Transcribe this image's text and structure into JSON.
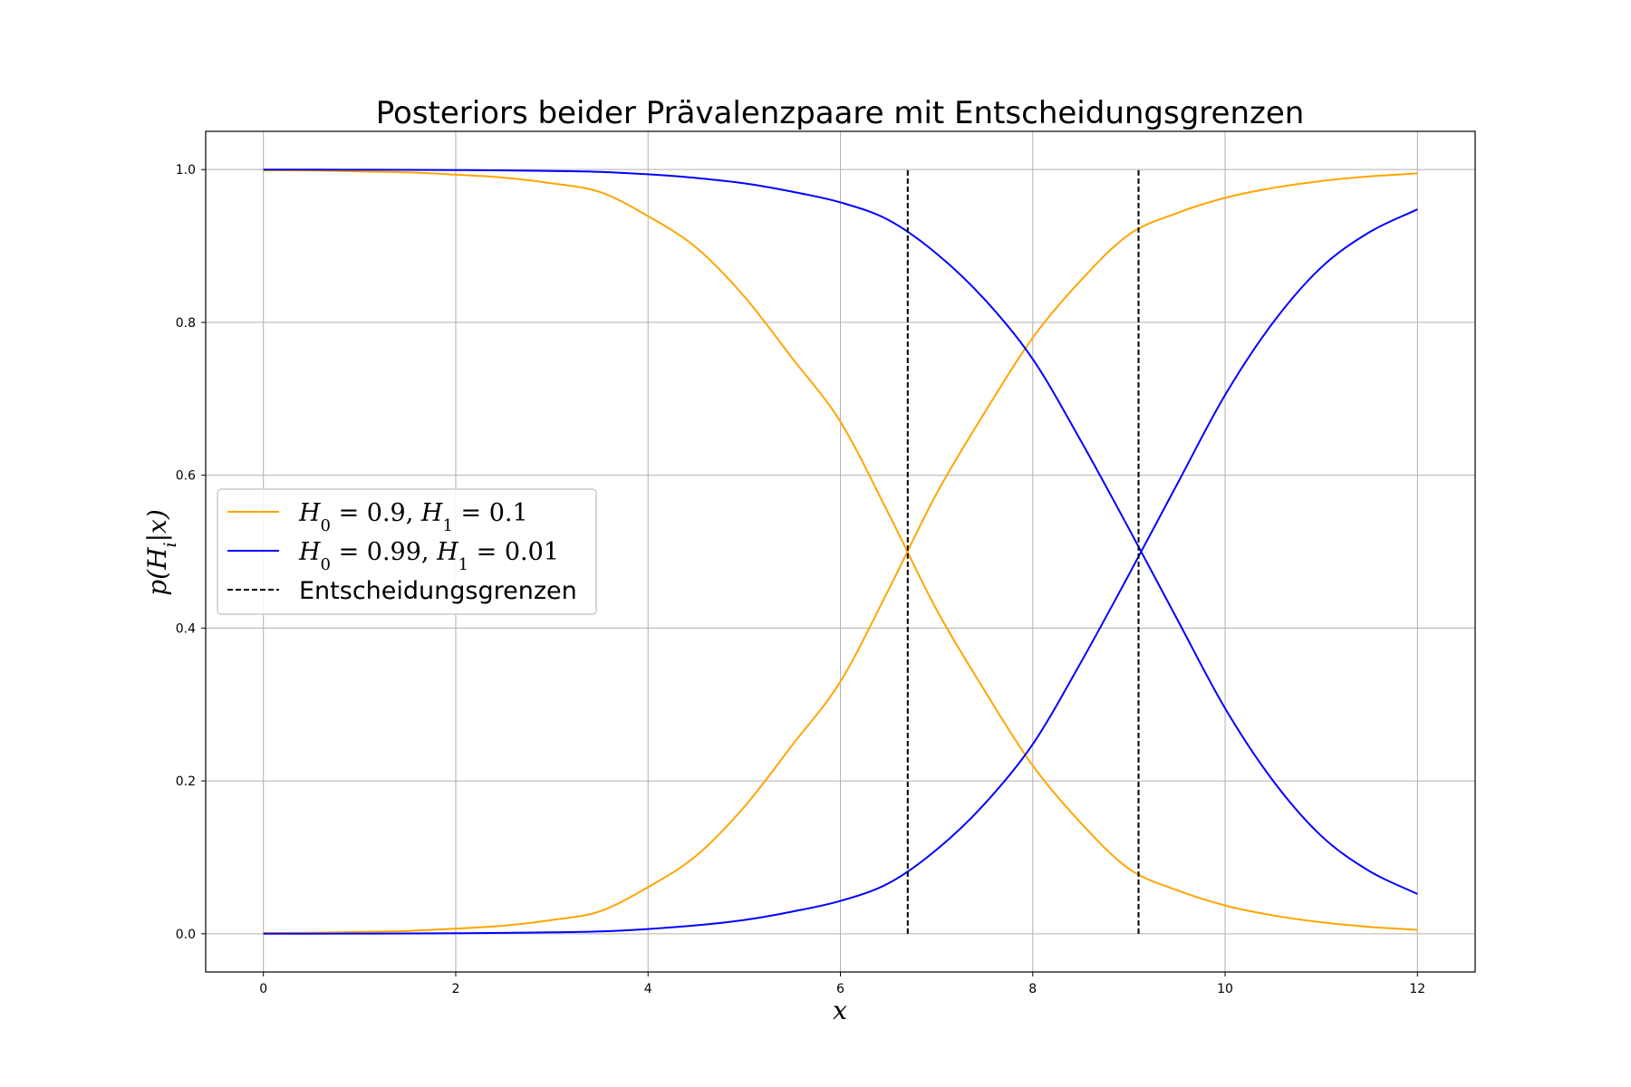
{
  "chart_data": {
    "type": "line",
    "title": "Posteriors beider Prävalenzpaare mit Entscheidungsgrenzen",
    "xlabel": "x",
    "ylabel": "p(H_i|x)",
    "xlim": [
      -0.6,
      12.6
    ],
    "ylim": [
      -0.05,
      1.05
    ],
    "xticks": [
      0,
      2,
      4,
      6,
      8,
      10,
      12
    ],
    "xtick_labels": [
      "0",
      "2",
      "4",
      "6",
      "8",
      "10",
      "12"
    ],
    "yticks": [
      0.0,
      0.2,
      0.4,
      0.6,
      0.8,
      1.0
    ],
    "ytick_labels": [
      "0.0",
      "0.2",
      "0.4",
      "0.6",
      "0.8",
      "1.0"
    ],
    "grid": true,
    "legend_position": "center-left",
    "series": [
      {
        "name": "H_0 = 0.9, H_1 = 0.1",
        "color": "#ffa500",
        "x": [
          0,
          0.5,
          1,
          1.5,
          2,
          2.5,
          3,
          3.5,
          4,
          4.5,
          5,
          5.5,
          6,
          6.5,
          7,
          7.5,
          8,
          8.5,
          9,
          9.5,
          10,
          10.5,
          11,
          11.5,
          12
        ],
        "posterior_H0": [
          0.9991,
          0.9987,
          0.9976,
          0.9963,
          0.9933,
          0.9894,
          0.982,
          0.9706,
          0.939,
          0.898,
          0.834,
          0.753,
          0.67,
          0.55,
          0.424,
          0.318,
          0.22,
          0.145,
          0.085,
          0.057,
          0.037,
          0.024,
          0.015,
          0.009,
          0.005
        ],
        "posterior_H1": [
          0.0009,
          0.0013,
          0.0024,
          0.0037,
          0.0067,
          0.0106,
          0.018,
          0.0294,
          0.061,
          0.102,
          0.166,
          0.247,
          0.33,
          0.45,
          0.576,
          0.682,
          0.78,
          0.855,
          0.915,
          0.943,
          0.963,
          0.976,
          0.985,
          0.991,
          0.995
        ]
      },
      {
        "name": "H_0 = 0.99, H_1 = 0.01",
        "color": "#0000ff",
        "x": [
          0,
          0.5,
          1,
          1.5,
          2,
          2.5,
          3,
          3.5,
          4,
          4.5,
          5,
          5.5,
          6,
          6.5,
          7,
          7.5,
          8,
          8.5,
          9,
          9.5,
          10,
          10.5,
          11,
          11.5,
          12
        ],
        "posterior_H0": [
          0.9999,
          0.99985,
          0.99975,
          0.9996,
          0.9993,
          0.9989,
          0.9982,
          0.997,
          0.9938,
          0.989,
          0.982,
          0.971,
          0.957,
          0.934,
          0.89,
          0.83,
          0.752,
          0.645,
          0.53,
          0.412,
          0.295,
          0.2,
          0.128,
          0.082,
          0.052
        ],
        "posterior_H1": [
          0.0001,
          0.00015,
          0.00025,
          0.0004,
          0.0007,
          0.0011,
          0.0018,
          0.003,
          0.0062,
          0.011,
          0.018,
          0.029,
          0.043,
          0.066,
          0.11,
          0.17,
          0.248,
          0.355,
          0.47,
          0.588,
          0.705,
          0.8,
          0.872,
          0.918,
          0.948
        ]
      }
    ],
    "decision_boundaries": {
      "name": "Entscheidungsgrenzen",
      "color": "#000000",
      "x": [
        6.7,
        9.1
      ],
      "y_range": [
        0.0,
        1.0
      ]
    },
    "legend": [
      {
        "label": "H_0 = 0.9, H_1 = 0.1",
        "color": "#ffa500",
        "style": "solid"
      },
      {
        "label": "H_0 = 0.99, H_1 = 0.01",
        "color": "#0000ff",
        "style": "solid"
      },
      {
        "label": "Entscheidungsgrenzen",
        "color": "#000000",
        "style": "dashed"
      }
    ]
  }
}
